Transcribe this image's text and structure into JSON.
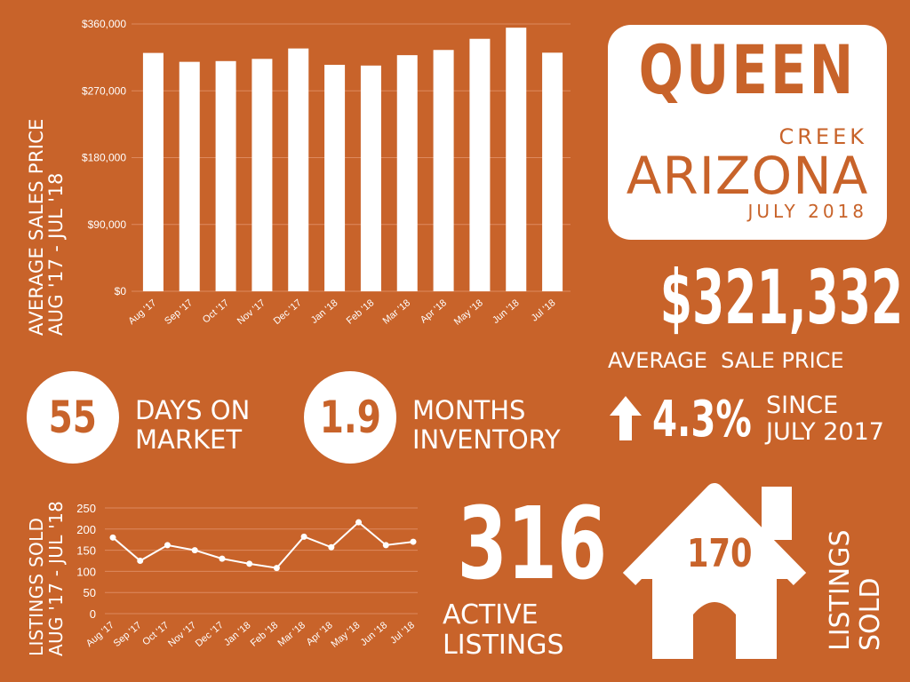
{
  "chart_data": [
    {
      "type": "bar",
      "title": "",
      "ylabel": [
        "AVERAGE SALES PRICE",
        "AUG '17 - JUL '18"
      ],
      "categories": [
        "Aug '17",
        "Sep '17",
        "Oct '17",
        "Nov '17",
        "Dec '17",
        "Jan '18",
        "Feb '18",
        "Mar '18",
        "Apr '18",
        "May '18",
        "Jun '18",
        "Jul '18"
      ],
      "values": [
        321000,
        309000,
        310000,
        313000,
        327000,
        305000,
        304000,
        318000,
        325000,
        340000,
        355000,
        321332
      ],
      "ylim": [
        0,
        360000
      ],
      "yticks": [
        "$0",
        "$90,000",
        "$180,000",
        "$270,000",
        "$360,000"
      ],
      "yticks_values": [
        0,
        90000,
        180000,
        270000,
        360000
      ],
      "grid": true
    },
    {
      "type": "line",
      "title": "",
      "ylabel": [
        "LISTINGS SOLD",
        "AUG '17 - JUL '18"
      ],
      "categories": [
        "Aug '17",
        "Sep '17",
        "Oct '17",
        "Nov '17",
        "Dec '17",
        "Jan '18",
        "Feb '18",
        "Mar '18",
        "Apr '18",
        "May '18",
        "Jun '18",
        "Jul '18"
      ],
      "values": [
        180,
        125,
        162,
        150,
        130,
        118,
        108,
        182,
        157,
        216,
        162,
        170
      ],
      "ylim": [
        0,
        250
      ],
      "yticks": [
        "0",
        "50",
        "100",
        "150",
        "200",
        "250"
      ],
      "yticks_values": [
        0,
        50,
        100,
        150,
        200,
        250
      ],
      "grid": true
    }
  ],
  "colors": {
    "background": "#c8632a",
    "foreground": "#ffffff",
    "grid": "#dd8a5f"
  },
  "header": {
    "city": "QUEEN",
    "city2": "CREEK",
    "state": "ARIZONA",
    "date": "JULY 2018"
  },
  "avg_price": {
    "value": "$321,332",
    "label": "AVERAGE  SALE PRICE"
  },
  "days_on_market": {
    "value": "55",
    "label1": "DAYS ON",
    "label2": "MARKET"
  },
  "months_inventory": {
    "value": "1.9",
    "label1": "MONTHS",
    "label2": "INVENTORY"
  },
  "change": {
    "icon": "arrow-up-icon",
    "value": "4.3%",
    "label1": "SINCE",
    "label2": "JULY 2017"
  },
  "active": {
    "value": "316",
    "label1": "ACTIVE",
    "label2": "LISTINGS"
  },
  "sold": {
    "icon": "house-icon",
    "value": "170",
    "label1": "LISTINGS",
    "label2": "SOLD"
  }
}
